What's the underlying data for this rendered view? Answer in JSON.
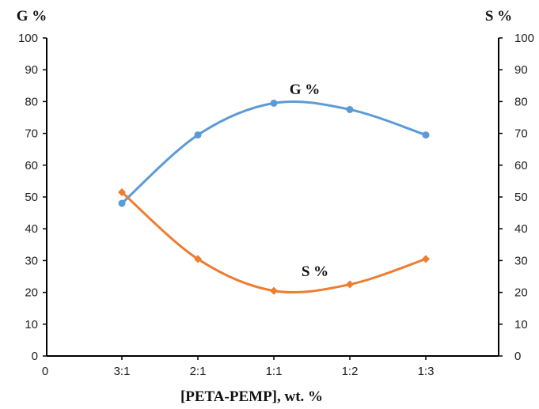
{
  "chart_data": {
    "type": "line",
    "title": "",
    "xlabel": "[PETA-PEMP], wt. %",
    "ylabel_left": "G %",
    "ylabel_right": "S %",
    "x_origin_label": "0",
    "categories": [
      "3:1",
      "2:1",
      "1:1",
      "1:2",
      "1:3"
    ],
    "ylim": [
      0,
      100
    ],
    "yticks": [
      "0",
      "10",
      "20",
      "30",
      "40",
      "50",
      "60",
      "70",
      "80",
      "90",
      "100"
    ],
    "grid": false,
    "smooth": true,
    "series": [
      {
        "name": "G %",
        "axis": "left",
        "color": "#5b9bd5",
        "marker": "circle",
        "values": [
          48,
          69.5,
          79.5,
          77.5,
          69.5
        ]
      },
      {
        "name": "S %",
        "axis": "right",
        "color": "#ed7d31",
        "marker": "diamond",
        "values": [
          51.5,
          30.5,
          20.5,
          22.5,
          30.5
        ]
      }
    ]
  }
}
